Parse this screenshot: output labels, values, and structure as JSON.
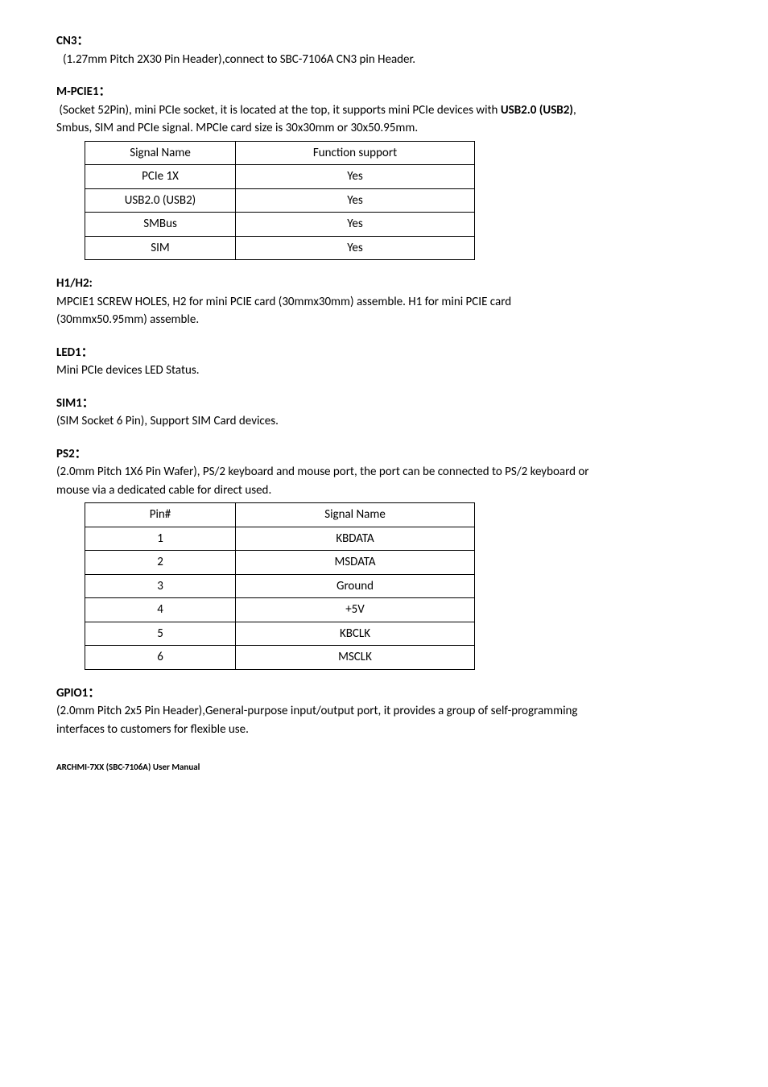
{
  "cn3": {
    "heading": "CN3：",
    "body": "(1.27mm Pitch 2X30 Pin Header),connect to SBC-7106A CN3 pin Header."
  },
  "mpcie1": {
    "heading": "M-PCIE1：",
    "body_pre": "(Socket 52Pin), mini PCIe socket, it is located at the top, it supports mini PCIe devices with ",
    "body_bold": "USB2.0 (USB2)",
    "body_post": ", Smbus, SIM and PCIe signal. MPCIe card size is 30x30mm or 30x50.95mm.",
    "table": {
      "header": [
        "Signal Name",
        "Function support"
      ],
      "rows": [
        [
          "PCIe 1X",
          "Yes"
        ],
        [
          "USB2.0 (USB2)",
          "Yes"
        ],
        [
          "SMBus",
          "Yes"
        ],
        [
          "SIM",
          "Yes"
        ]
      ]
    }
  },
  "h1h2": {
    "heading": "H1/H2:",
    "body": "MPCIE1 SCREW HOLES, H2 for mini PCIE card (30mmx30mm) assemble. H1 for mini PCIE card (30mmx50.95mm) assemble."
  },
  "led1": {
    "heading": "LED1：",
    "body": "Mini PCIe devices LED Status."
  },
  "sim1": {
    "heading": "SIM1：",
    "body": "(SIM Socket 6 Pin), Support SIM Card devices."
  },
  "ps2": {
    "heading": "PS2：",
    "body": "(2.0mm Pitch 1X6 Pin Wafer), PS/2 keyboard and mouse port, the port can be connected to PS/2 keyboard or mouse via a dedicated cable for direct used.",
    "table": {
      "header": [
        "Pin#",
        "Signal Name"
      ],
      "rows": [
        [
          "1",
          "KBDATA"
        ],
        [
          "2",
          "MSDATA"
        ],
        [
          "3",
          "Ground"
        ],
        [
          "4",
          "+5V"
        ],
        [
          "5",
          "KBCLK"
        ],
        [
          "6",
          "MSCLK"
        ]
      ]
    }
  },
  "gpio1": {
    "heading": "GPIO1：",
    "body": "(2.0mm Pitch 2x5 Pin Header),General-purpose input/output port, it provides a group of self-programming interfaces to customers for flexible use."
  },
  "footer": "ARCHMI-7XX (SBC-7106A) User Manual"
}
